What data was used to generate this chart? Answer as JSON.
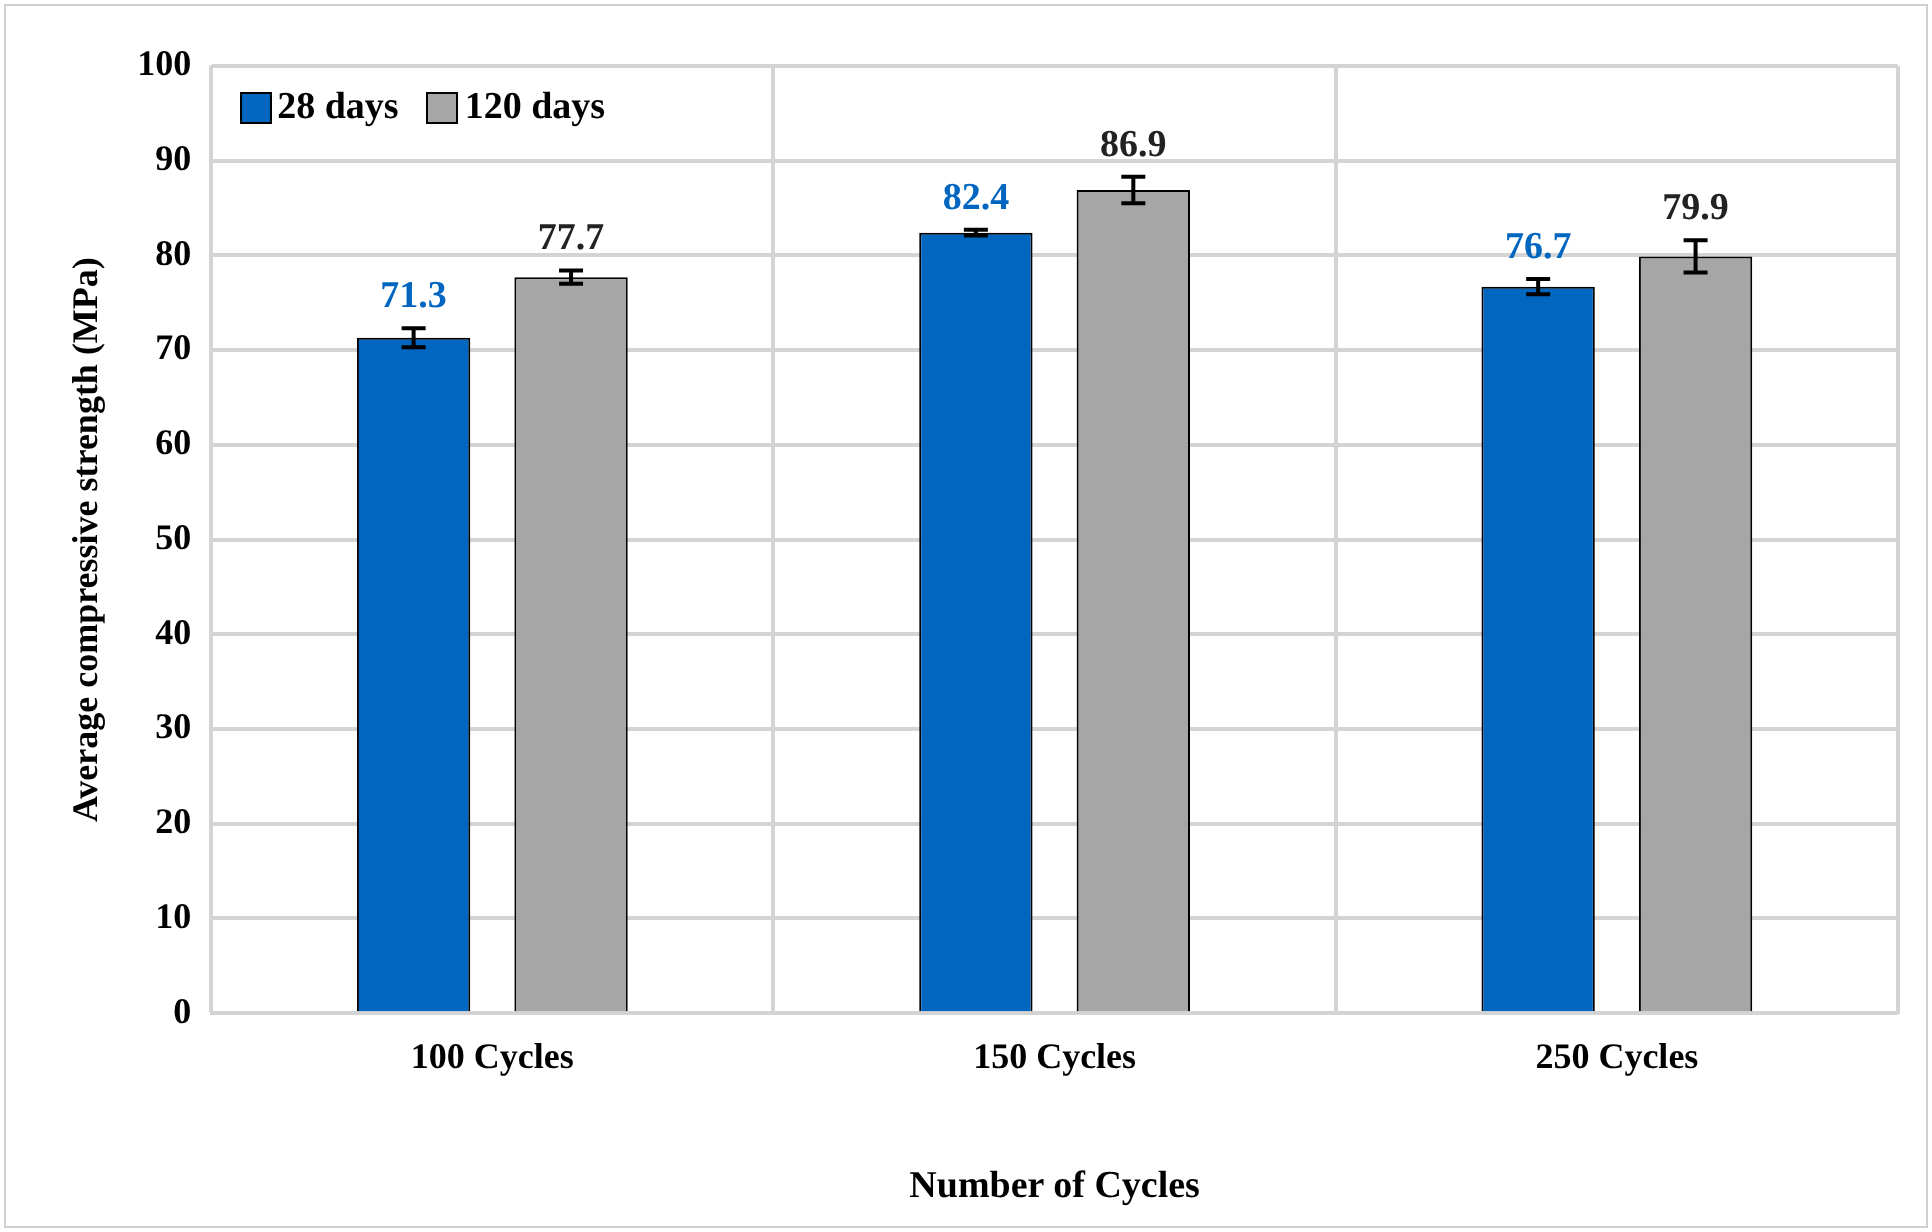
{
  "chart_data": {
    "type": "bar",
    "xlabel": "Number of Cycles",
    "ylabel": "Average compressive strength (MPa)",
    "categories": [
      "100 Cycles",
      "150 Cycles",
      "250 Cycles"
    ],
    "series": [
      {
        "name": "28 days",
        "color": "#0066c0",
        "values": [
          71.3,
          82.4,
          76.7
        ],
        "errors": [
          1.0,
          0.3,
          0.8
        ]
      },
      {
        "name": "120 days",
        "color": "#a6a6a6",
        "values": [
          77.7,
          86.9,
          79.9
        ],
        "errors": [
          0.7,
          1.4,
          1.7
        ]
      }
    ],
    "ylim": [
      0,
      100
    ],
    "yticks": [
      0,
      10,
      20,
      30,
      40,
      50,
      60,
      70,
      80,
      90,
      100
    ],
    "grid": true,
    "legend": "top left",
    "data_labels": true
  }
}
